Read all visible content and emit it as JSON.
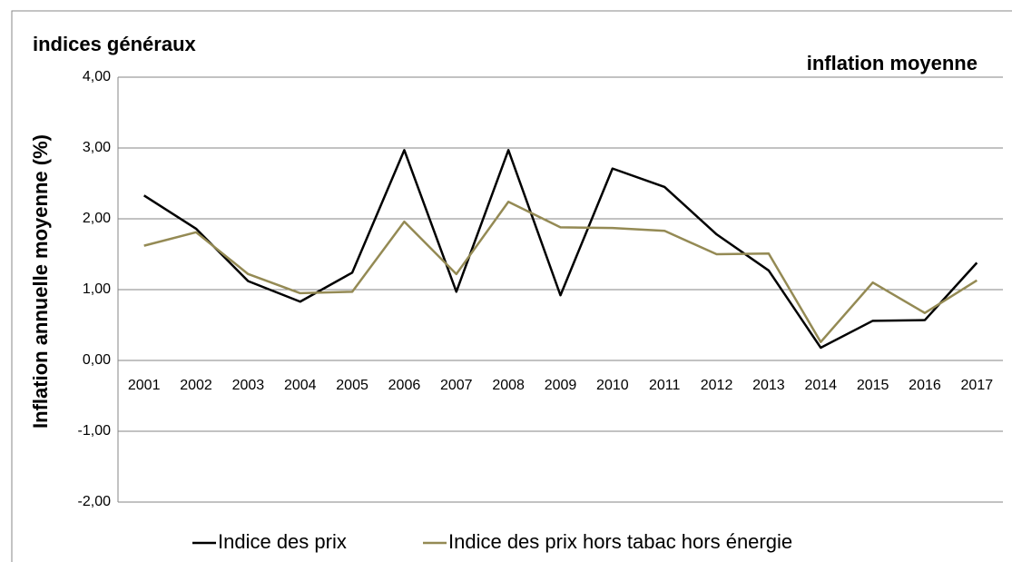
{
  "chart_data": {
    "type": "line",
    "title": "indices généraux",
    "subtitle": "inflation moyenne",
    "y_label": "Inflation annuelle moyenne (%)",
    "categories": [
      "2001",
      "2002",
      "2003",
      "2004",
      "2005",
      "2006",
      "2007",
      "2008",
      "2009",
      "2010",
      "2011",
      "2012",
      "2013",
      "2014",
      "2015",
      "2016",
      "2017"
    ],
    "series": [
      {
        "name": "Indice des prix",
        "color": "#000000",
        "values": [
          2.33,
          1.86,
          1.12,
          0.83,
          1.24,
          2.97,
          0.97,
          2.97,
          0.92,
          2.71,
          2.45,
          1.78,
          1.27,
          0.18,
          0.56,
          0.57,
          1.38
        ]
      },
      {
        "name": "Indice des prix hors tabac hors énergie",
        "color": "#948a54",
        "values": [
          1.62,
          1.81,
          1.22,
          0.95,
          0.97,
          1.96,
          1.22,
          2.24,
          1.88,
          1.87,
          1.83,
          1.5,
          1.51,
          0.26,
          1.1,
          0.67,
          1.13
        ]
      }
    ],
    "ylim": [
      -2,
      4
    ],
    "yticks": [
      {
        "value": -2,
        "label": "-2,00"
      },
      {
        "value": -1,
        "label": "-1,00"
      },
      {
        "value": 0,
        "label": "0,00"
      },
      {
        "value": 1,
        "label": "1,00"
      },
      {
        "value": 2,
        "label": "2,00"
      },
      {
        "value": 3,
        "label": "3,00"
      },
      {
        "value": 4,
        "label": "4,00"
      }
    ],
    "grid": true,
    "legend": "bottom"
  }
}
